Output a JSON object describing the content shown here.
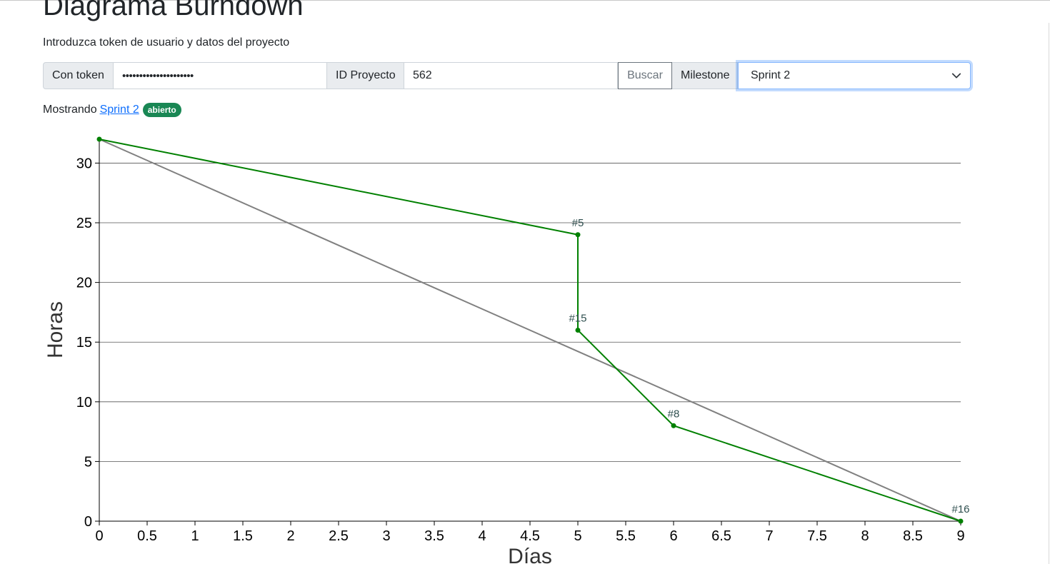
{
  "header": {
    "title": "Diagrama Burndown",
    "subtitle": "Introduzca token de usuario y datos del proyecto"
  },
  "form": {
    "token_label": "Con token",
    "token_value": "•••••••••••••••••••••",
    "project_label": "ID Proyecto",
    "project_value": "562",
    "search_label": "Buscar",
    "milestone_label": "Milestone",
    "milestone_selected": "Sprint 2"
  },
  "status": {
    "prefix": "Mostrando",
    "milestone_link": "Sprint 2",
    "badge": "abierto",
    "badge_color": "#198754"
  },
  "chart_data": {
    "type": "line",
    "xlabel": "Días",
    "ylabel": "Horas",
    "xlim": [
      0,
      9
    ],
    "ylim": [
      0,
      32
    ],
    "x_ticks": [
      "0",
      "0.5",
      "1",
      "1.5",
      "2",
      "2.5",
      "3",
      "3.5",
      "4",
      "4.5",
      "5",
      "5.5",
      "6",
      "6.5",
      "7",
      "7.5",
      "8",
      "8.5",
      "9"
    ],
    "y_ticks": [
      "0",
      "5",
      "10",
      "15",
      "20",
      "25",
      "30"
    ],
    "grid": "horizontal",
    "series": [
      {
        "color": "#808080",
        "points": [
          {
            "x": 0,
            "y": 32
          },
          {
            "x": 9,
            "y": 0
          }
        ]
      },
      {
        "color": "#008000",
        "markers": true,
        "points": [
          {
            "x": 0,
            "y": 32,
            "label": ""
          },
          {
            "x": 5,
            "y": 24,
            "label": "#5"
          },
          {
            "x": 5,
            "y": 16,
            "label": "#15"
          },
          {
            "x": 6,
            "y": 8,
            "label": "#8"
          },
          {
            "x": 9,
            "y": 0,
            "label": "#16"
          }
        ]
      }
    ]
  }
}
